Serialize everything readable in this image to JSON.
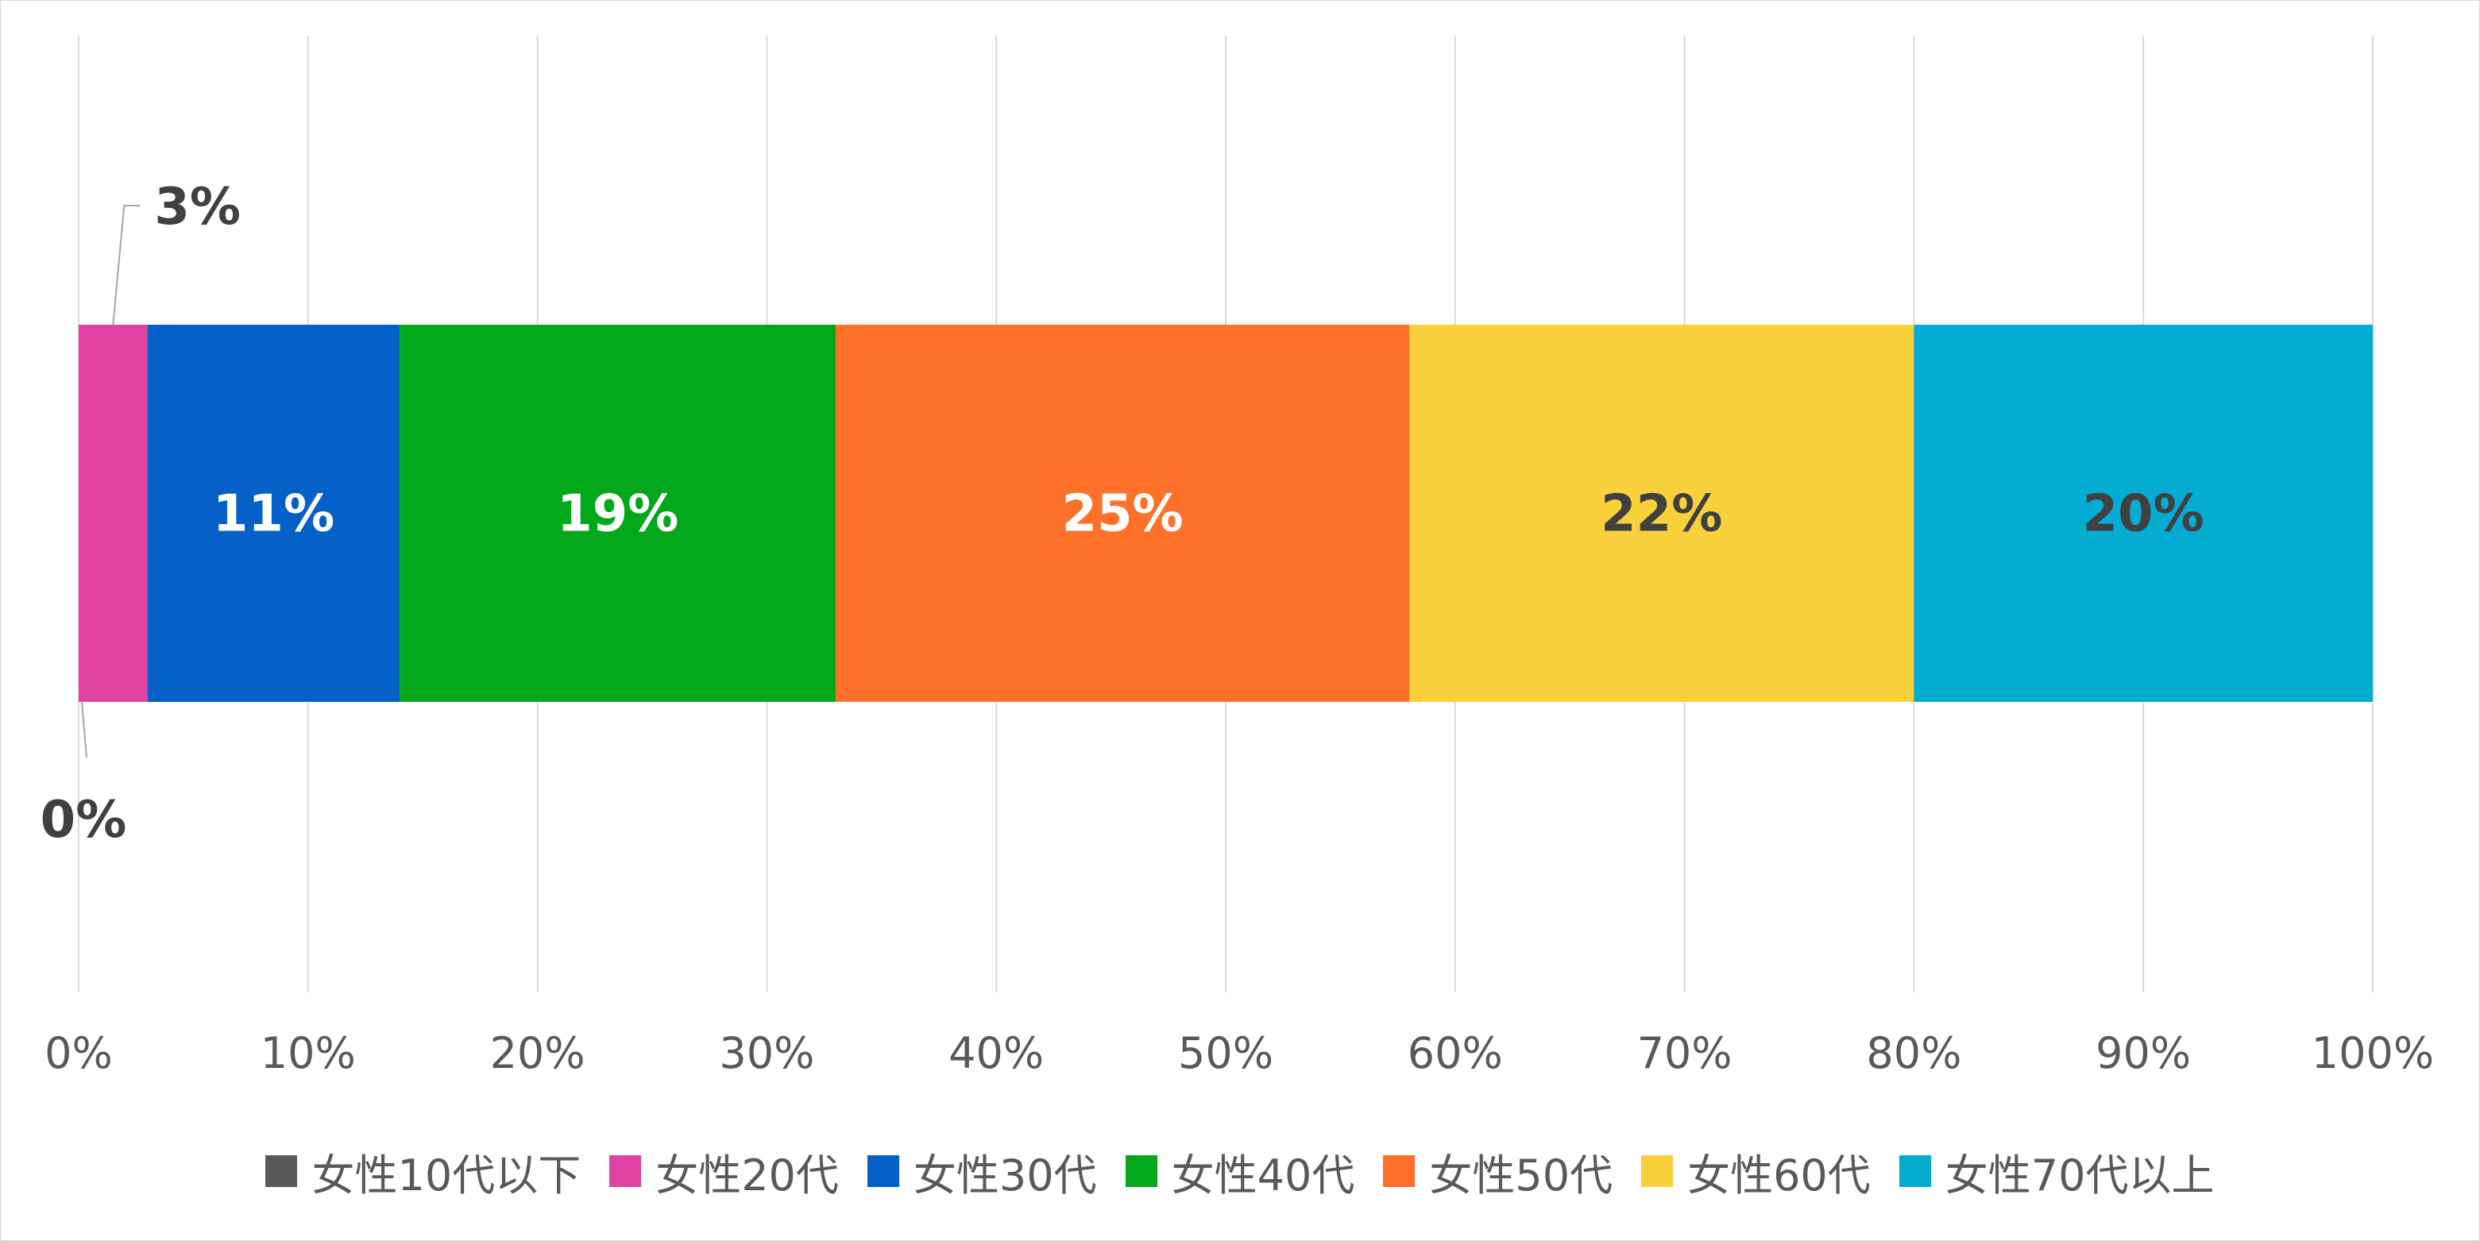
{
  "chart_data": {
    "type": "bar",
    "orientation": "horizontal",
    "stacked": "percent",
    "categories": [
      ""
    ],
    "series": [
      {
        "name": "女性10代以下",
        "values": [
          0
        ],
        "label": "0%",
        "color": "#595959",
        "label_color": "#404040"
      },
      {
        "name": "女性20代",
        "values": [
          3
        ],
        "label": "3%",
        "color": "#e043a4",
        "label_color": "#404040"
      },
      {
        "name": "女性30代",
        "values": [
          11
        ],
        "label": "11%",
        "color": "#0560c8",
        "label_color": "#ffffff"
      },
      {
        "name": "女性40代",
        "values": [
          19
        ],
        "label": "19%",
        "color": "#02a81a",
        "label_color": "#ffffff"
      },
      {
        "name": "女性50代",
        "values": [
          25
        ],
        "label": "25%",
        "color": "#ff712b",
        "label_color": "#ffffff"
      },
      {
        "name": "女性60代",
        "values": [
          22
        ],
        "label": "22%",
        "color": "#f8d13c",
        "label_color": "#404040"
      },
      {
        "name": "女性70代以上",
        "values": [
          20
        ],
        "label": "20%",
        "color": "#05acd1",
        "label_color": "#404040"
      }
    ],
    "xlim": [
      0,
      100
    ],
    "x_ticks": [
      "0%",
      "10%",
      "20%",
      "30%",
      "40%",
      "50%",
      "60%",
      "70%",
      "80%",
      "90%",
      "100%"
    ],
    "grid": "vertical",
    "legend_position": "bottom",
    "title": "",
    "xlabel": "",
    "ylabel": ""
  }
}
